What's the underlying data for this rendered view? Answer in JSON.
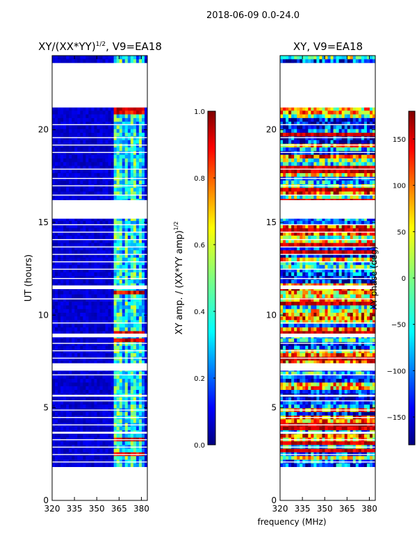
{
  "figure_title": "2018-06-09 0.0-24.0",
  "shared_xlabel": "frequency (MHz)",
  "colormap": [
    "#00007f",
    "#0000ff",
    "#007fff",
    "#00ffff",
    "#7fff7f",
    "#ffff00",
    "#ff7f00",
    "#ff0000",
    "#7f0000"
  ],
  "chart_data": [
    {
      "type": "heatmap",
      "title_main": "XY/(XX*YY)",
      "title_sup": "1/2",
      "title_tail": ", V9=EA18",
      "xlabel": "",
      "ylabel": "UT (hours)",
      "xlim": [
        320,
        384
      ],
      "ylim": [
        0,
        24
      ],
      "xticks": [
        320,
        335,
        350,
        365,
        380
      ],
      "yticks": [
        0,
        5,
        10,
        15,
        20
      ],
      "data_time_range_hours": [
        1.8,
        24.0
      ],
      "gaps_hours": [
        [
          21.2,
          23.6
        ],
        [
          16.2,
          15.2
        ],
        [
          11.6,
          11.4
        ]
      ],
      "colorbar": {
        "label_main": "XY amp. / (XX*YY amp)",
        "label_sup": "1/2",
        "range": [
          0.0,
          1.0
        ],
        "ticks": [
          0.0,
          0.2,
          0.4,
          0.6,
          0.8,
          1.0
        ],
        "tick_labels": [
          "0.0",
          "0.2",
          "0.4",
          "0.6",
          "0.8",
          "1.0"
        ]
      }
    },
    {
      "type": "heatmap",
      "title_main": "XY, V9=EA18",
      "xlabel": "frequency (MHz)",
      "ylabel": "",
      "xlim": [
        320,
        384
      ],
      "ylim": [
        0,
        24
      ],
      "xticks": [
        320,
        335,
        350,
        365,
        380
      ],
      "yticks": [
        0,
        5,
        10,
        15,
        20
      ],
      "data_time_range_hours": [
        1.8,
        24.0
      ],
      "colorbar": {
        "label_main": "XY phase (deg)",
        "range": [
          -180,
          180
        ],
        "ticks": [
          -150,
          -100,
          -50,
          0,
          50,
          100,
          150
        ],
        "tick_labels": [
          "−150",
          "−100",
          "−50",
          "0",
          "50",
          "100",
          "150"
        ]
      }
    }
  ]
}
